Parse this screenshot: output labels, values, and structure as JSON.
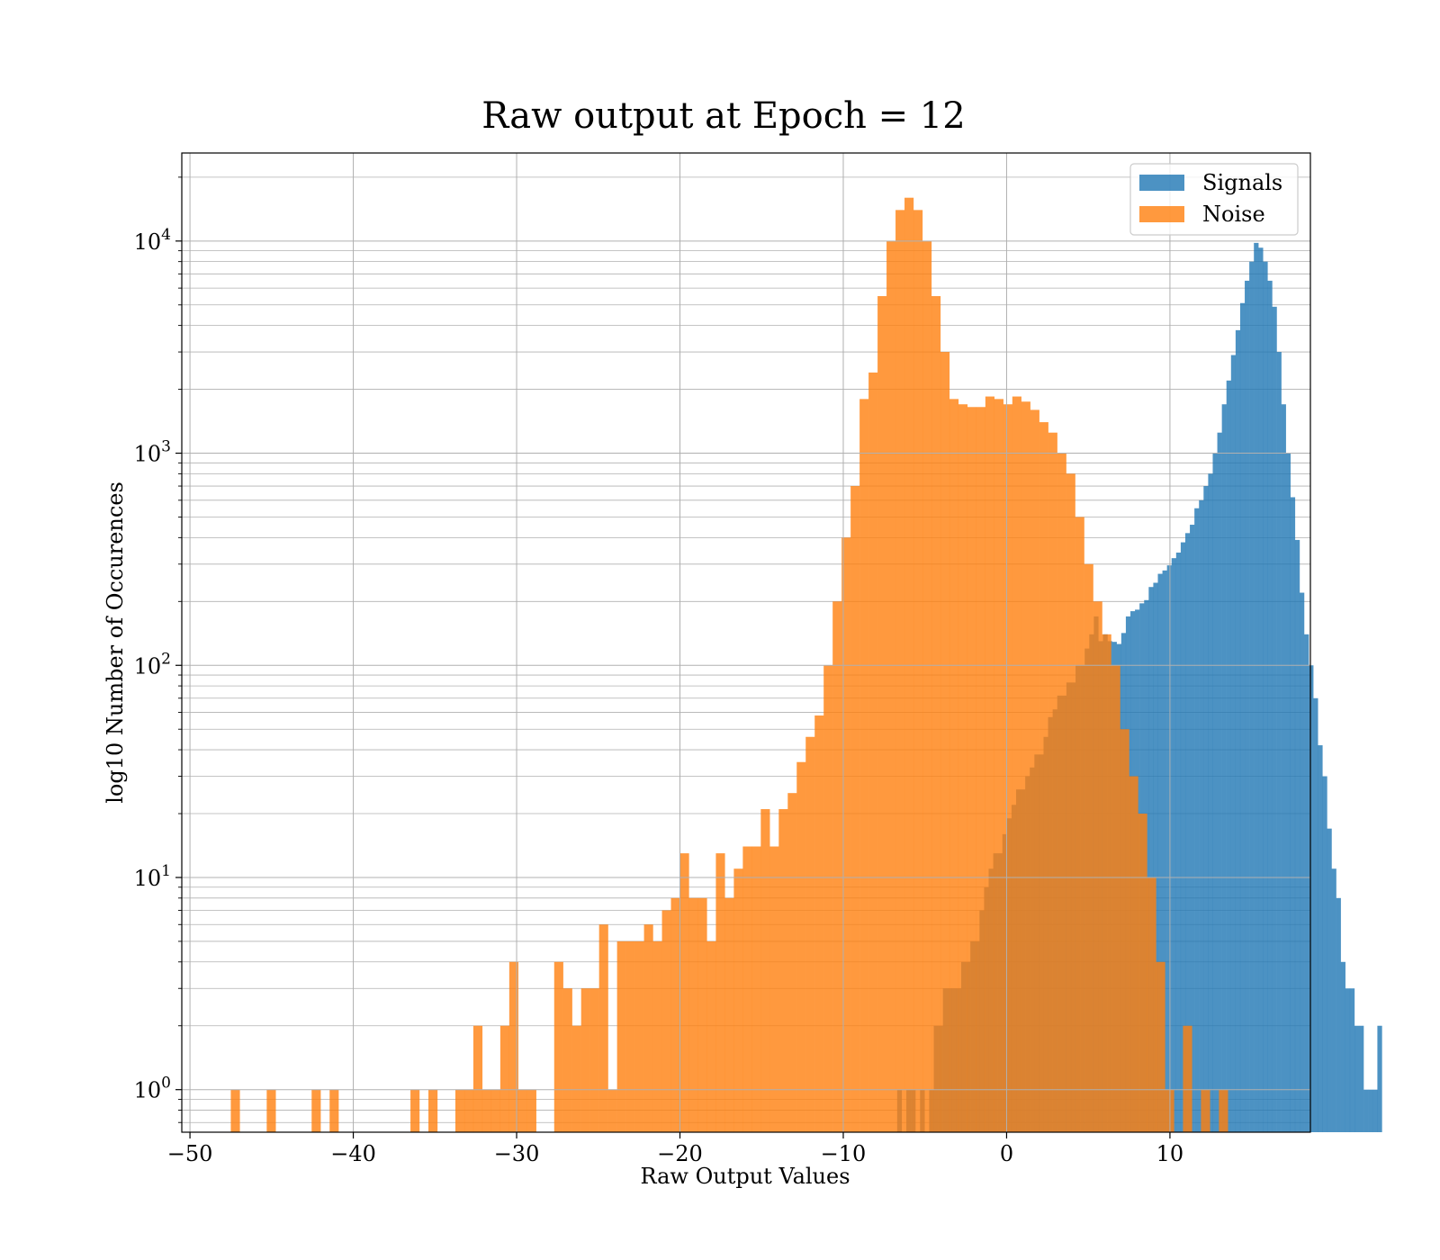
{
  "chart_data": {
    "type": "histogram",
    "title": "Raw output at Epoch = 12",
    "xlabel": "Raw Output Values",
    "ylabel": "log10 Number of Occurences",
    "xlim": [
      -50.5,
      18.6
    ],
    "ylim": [
      0.63,
      26000
    ],
    "yscale": "log",
    "grid": true,
    "legend_position": "top-right",
    "x_ticks": [
      {
        "value": -50,
        "label": "−50"
      },
      {
        "value": -40,
        "label": "−40"
      },
      {
        "value": -30,
        "label": "−30"
      },
      {
        "value": -20,
        "label": "−20"
      },
      {
        "value": -10,
        "label": "−10"
      },
      {
        "value": 0,
        "label": "0"
      },
      {
        "value": 10,
        "label": "10"
      }
    ],
    "y_ticks": [
      {
        "value": 1,
        "base": "10",
        "exp": "0"
      },
      {
        "value": 10,
        "base": "10",
        "exp": "1"
      },
      {
        "value": 100,
        "base": "10",
        "exp": "2"
      },
      {
        "value": 1000,
        "base": "10",
        "exp": "3"
      },
      {
        "value": 10000,
        "base": "10",
        "exp": "4"
      }
    ],
    "series": [
      {
        "name": "Signals",
        "color": "#1f77b4",
        "opacity": 0.8,
        "bin_start": -6.7,
        "bin_width": 0.28,
        "counts": [
          1,
          0,
          1,
          1,
          0,
          1,
          0,
          1,
          2,
          2,
          3,
          3,
          3,
          3,
          4,
          4,
          5,
          5,
          7,
          9,
          11,
          13,
          13,
          16,
          19,
          22,
          26,
          26,
          30,
          33,
          38,
          38,
          46,
          57,
          62,
          72,
          72,
          83,
          83,
          100,
          100,
          120,
          140,
          170,
          130,
          140,
          130,
          129,
          126,
          142,
          170,
          180,
          183,
          196,
          203,
          234,
          245,
          270,
          280,
          296,
          320,
          340,
          380,
          420,
          460,
          550,
          600,
          700,
          800,
          1000,
          1250,
          1700,
          2200,
          2900,
          3800,
          5100,
          6500,
          8000,
          9800,
          9300,
          8000,
          6500,
          4900,
          3000,
          1700,
          1000,
          620,
          390,
          220,
          140,
          100,
          70,
          42,
          30,
          17,
          11,
          8,
          4,
          3,
          3,
          2,
          2,
          1,
          1,
          1,
          2
        ]
      },
      {
        "name": "Noise",
        "color": "#ff7f0e",
        "opacity": 0.8,
        "bin_start": -47.5,
        "bin_width": 0.55,
        "counts": [
          1,
          0,
          0,
          0,
          1,
          0,
          0,
          0,
          0,
          1,
          0,
          1,
          0,
          0,
          0,
          0,
          0,
          0,
          0,
          0,
          1,
          0,
          1,
          0,
          0,
          1,
          1,
          2,
          1,
          1,
          2,
          4,
          1,
          1,
          0,
          0,
          4,
          3,
          2,
          3,
          3,
          6,
          1,
          5,
          5,
          5,
          6,
          5,
          7,
          8,
          13,
          8,
          8,
          5,
          13,
          8,
          11,
          14,
          14,
          21,
          14,
          21,
          25,
          35,
          46,
          58,
          100,
          200,
          400,
          700,
          1800,
          2400,
          5500,
          10000,
          14000,
          16000,
          14000,
          10000,
          5500,
          3000,
          1800,
          1700,
          1650,
          1650,
          1850,
          1800,
          1700,
          1850,
          1750,
          1600,
          1400,
          1250,
          1000,
          800,
          500,
          300,
          200,
          140,
          100,
          50,
          30,
          20,
          10,
          4,
          1,
          0,
          2,
          0,
          1,
          0,
          1,
          0,
          0,
          0
        ]
      }
    ]
  }
}
